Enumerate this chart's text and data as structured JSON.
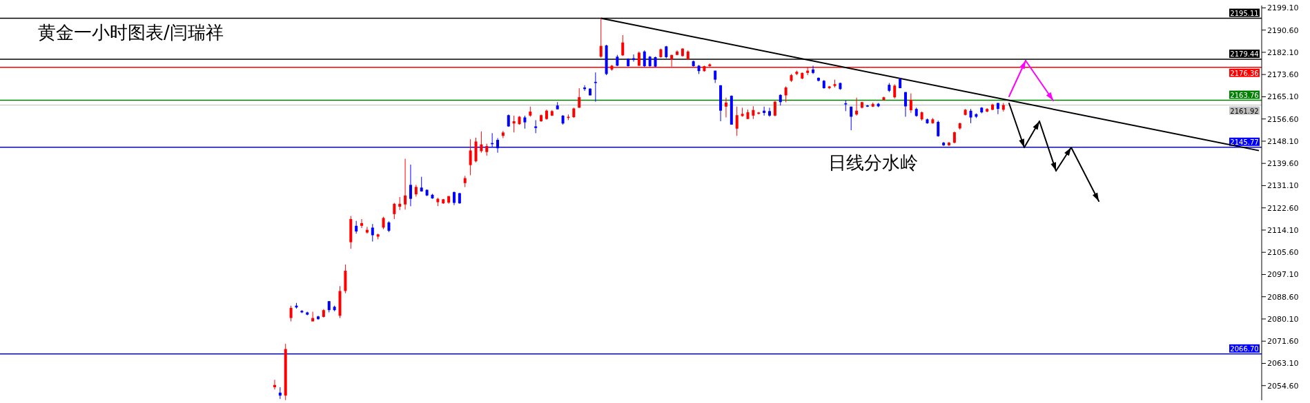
{
  "chart_data": {
    "type": "candlestick",
    "title": "黄金一小时图表/闫瑞祥",
    "annotations": [
      "日线分水岭"
    ],
    "categories": [
      null,
      null,
      null,
      null,
      null,
      null,
      null,
      null,
      null,
      null,
      null,
      null,
      null,
      null,
      null,
      null,
      null,
      null,
      null,
      null,
      null,
      null,
      null,
      null,
      null,
      null,
      null,
      null,
      null,
      null,
      null,
      null,
      null,
      null,
      null,
      null,
      null,
      null,
      null,
      null,
      null,
      null,
      null,
      null,
      null,
      null,
      null,
      null,
      null,
      null,
      null,
      null,
      null,
      null,
      null,
      null,
      null,
      null,
      null,
      null,
      null,
      null,
      null,
      null,
      null,
      null,
      null,
      null,
      null,
      null,
      null,
      null,
      null,
      null,
      null,
      null,
      null,
      null,
      null,
      null,
      null,
      null,
      null,
      null,
      null,
      null,
      null,
      null,
      null,
      null,
      null,
      null,
      null,
      null,
      null,
      null,
      null,
      null,
      null,
      null,
      null,
      null,
      null,
      null,
      null,
      null,
      null,
      null,
      null,
      null,
      null,
      null,
      null,
      null,
      null,
      null,
      null,
      null,
      null,
      null,
      null,
      null,
      null,
      null,
      null,
      null,
      null,
      null,
      null,
      null,
      null,
      null,
      null,
      null,
      null,
      null,
      null,
      null,
      null,
      null,
      null,
      null,
      null,
      null,
      null,
      null,
      null,
      null,
      null,
      null,
      null,
      null,
      null,
      null,
      null,
      null,
      null,
      null,
      null,
      null,
      null,
      null,
      null,
      null,
      null,
      null,
      null,
      null,
      null,
      null,
      null,
      null,
      null,
      null,
      null,
      null,
      null,
      null,
      null,
      null,
      null,
      null,
      null,
      null,
      null,
      null,
      null,
      null,
      null,
      null,
      null,
      null,
      null,
      null,
      null,
      null,
      null,
      null,
      null,
      null,
      null,
      null,
      null,
      null,
      null,
      null,
      null,
      null,
      null,
      null,
      null,
      null,
      null,
      null,
      null,
      null,
      null,
      null,
      null,
      null,
      null,
      null,
      null,
      null,
      null,
      null,
      null,
      null,
      null,
      null,
      null,
      null
    ],
    "ohlc": [
      null,
      null,
      null,
      null,
      null,
      null,
      null,
      null,
      null,
      null,
      null,
      null,
      null,
      null,
      null,
      null,
      null,
      null,
      null,
      null,
      null,
      null,
      null,
      null,
      null,
      null,
      null,
      null,
      null,
      null,
      null,
      null,
      null,
      null,
      null,
      null,
      null,
      null,
      null,
      null,
      null,
      null,
      null,
      null,
      null,
      null,
      null,
      null,
      null,
      null,
      [
        2053.97,
        2056.81,
        2053.11,
        2054.83
      ],
      [
        2051.9,
        2053.97,
        2049.49,
        2050.78
      ],
      [
        2050.78,
        2070.57,
        2049.06,
        2068.59
      ],
      [
        2080.46,
        2085.19,
        2079.17,
        2084.33
      ],
      [
        2085.19,
        2086.22,
        2084.07,
        2084.5
      ],
      [
        2083.21,
        2083.47,
        2082.35,
        2082.61
      ],
      [
        2082.61,
        2082.87,
        2081.49,
        2081.75
      ],
      [
        2079.17,
        2082.87,
        2079.17,
        2080.46
      ],
      [
        2081.06,
        2081.32,
        2079.77,
        2080.03
      ],
      [
        2080.89,
        2083.9,
        2080.63,
        2083.47
      ],
      [
        2086.91,
        2086.91,
        2082.61,
        2083.47
      ],
      [
        2084.76,
        2085.19,
        2083.04,
        2083.47
      ],
      [
        2081.32,
        2092.67,
        2080.46,
        2090.78
      ],
      [
        2090.78,
        2100.93,
        2089.92,
        2098.53
      ],
      [
        2109.45,
        2119.51,
        2106.96,
        2118.31
      ],
      [
        2115.73,
        2117.62,
        2112.72,
        2113.58
      ],
      [
        2115.73,
        2118.31,
        2114.87,
        2116.76
      ],
      [
        2113.15,
        2115.3,
        2112.72,
        2114.18
      ],
      [
        2115.04,
        2116.42,
        2109.71,
        2112.12
      ],
      [
        2111.6,
        2112.72,
        2110.57,
        2112.46
      ],
      [
        2115.04,
        2119.17,
        2114.44,
        2118.74
      ],
      [
        2117.02,
        2117.45,
        2113.32,
        2113.84
      ],
      [
        2120.2,
        2124.5,
        2118.31,
        2124.16
      ],
      [
        2123.04,
        2126.74,
        2121.75,
        2124.16
      ],
      [
        2123.9,
        2141.36,
        2121.92,
        2127.34
      ],
      [
        2131.39,
        2139.13,
        2123.21,
        2126.05
      ],
      [
        2127.77,
        2131.39,
        2126.91,
        2130.61
      ],
      [
        2130.35,
        2134.48,
        2128.8,
        2128.89
      ],
      [
        2129.49,
        2129.66,
        2127.08,
        2127.34
      ],
      [
        2127.6,
        2127.94,
        2126.05,
        2126.22
      ],
      [
        2124.76,
        2126.48,
        2123.3,
        2126.05
      ],
      [
        2124.33,
        2126.0,
        2124.1,
        2125.88
      ],
      [
        2124.59,
        2127.08,
        2124.16,
        2127.08
      ],
      [
        2128.63,
        2128.8,
        2123.64,
        2124.5
      ],
      [
        2128.2,
        2128.37,
        2124.16,
        2124.33
      ],
      [
        2132.07,
        2134.83,
        2130.53,
        2133.97
      ],
      [
        2138.95,
        2148.85,
        2135.08,
        2144.55
      ],
      [
        2140.42,
        2149.45,
        2139.99,
        2147.99
      ],
      [
        2144.29,
        2151.86,
        2143.69,
        2146.87
      ],
      [
        2143.94,
        2147.13,
        2142.57,
        2146.27
      ],
      [
        2147.38,
        2151.17,
        2145.84,
        2146.95
      ],
      [
        2148.59,
        2149.28,
        2143.69,
        2145.41
      ],
      [
        2150.14,
        2152.03,
        2149.28,
        2151.43
      ],
      [
        2158.05,
        2158.31,
        2153.58,
        2153.75
      ],
      [
        2154.87,
        2157.88,
        2151.43,
        2155.73
      ],
      [
        2154.61,
        2157.71,
        2154.44,
        2157.45
      ],
      [
        2157.19,
        2157.88,
        2152.89,
        2155.3
      ],
      [
        2157.88,
        2161.32,
        2157.45,
        2159.43
      ],
      [
        2153.75,
        2156.16,
        2151.17,
        2153.15
      ],
      [
        2155.73,
        2158.31,
        2155.47,
        2158.05
      ],
      [
        2156.59,
        2160.2,
        2156.3,
        2159.77
      ],
      [
        2157.88,
        2160.03,
        2157.71,
        2159.6
      ],
      [
        2161.75,
        2163.04,
        2160.29,
        2160.29
      ],
      [
        2157.88,
        2158.05,
        2154.44,
        2154.87
      ],
      [
        2157.02,
        2158.31,
        2156.16,
        2157.45
      ],
      [
        2157.28,
        2160.89,
        2157.02,
        2160.63
      ],
      [
        2160.89,
        2168.37,
        2160.89,
        2164.93
      ],
      [
        2168.63,
        2169.49,
        2167.34,
        2168.03
      ],
      [
        2168.2,
        2168.37,
        2165.62,
        2165.62
      ],
      [
        2170.78,
        2174.4,
        2163.21,
        2170.35
      ],
      [
        2180.42,
        2195.11,
        2180.07,
        2184.55
      ],
      [
        2184.72,
        2184.98,
        2173.36,
        2173.79
      ],
      [
        2175.51,
        2177.23,
        2175.08,
        2176.98
      ],
      [
        2180.42,
        2181.11,
        2176.8,
        2176.98
      ],
      [
        2180.93,
        2188.68,
        2180.68,
        2185.84
      ],
      [
        2179.56,
        2179.82,
        2176.63,
        2176.8
      ],
      [
        2179.82,
        2181.28,
        2178.53,
        2179.21
      ],
      [
        2176.98,
        2182.4,
        2176.8,
        2181.97
      ],
      [
        2182.4,
        2182.83,
        2176.37,
        2176.8
      ],
      [
        2180.42,
        2180.68,
        2176.63,
        2176.8
      ],
      [
        2180.25,
        2180.42,
        2176.37,
        2176.63
      ],
      [
        2180.25,
        2183.51,
        2180.07,
        2183.26
      ],
      [
        2184.37,
        2184.55,
        2179.82,
        2180.25
      ],
      [
        2179.39,
        2181.11,
        2176.63,
        2181.11
      ],
      [
        2181.11,
        2182.83,
        2180.93,
        2182.4
      ],
      [
        2180.68,
        2183.69,
        2180.42,
        2183.51
      ],
      [
        2179.39,
        2182.83,
        2179.21,
        2182.4
      ],
      [
        2178.7,
        2178.96,
        2176.63,
        2176.8
      ],
      [
        2176.98,
        2177.23,
        2173.79,
        2174.91
      ],
      [
        2174.91,
        2176.98,
        2174.65,
        2176.8
      ],
      [
        2176.8,
        2177.84,
        2176.63,
        2177.49
      ],
      [
        2175.08,
        2175.08,
        2170.35,
        2171.64
      ],
      [
        2169.49,
        2169.49,
        2155.73,
        2159.77
      ],
      [
        2161.32,
        2164.76,
        2157.19,
        2162.87
      ],
      [
        2165.45,
        2165.62,
        2154.44,
        2154.44
      ],
      [
        2152.89,
        2161.32,
        2150.14,
        2158.05
      ],
      [
        2157.71,
        2160.89,
        2157.45,
        2158.57
      ],
      [
        2156.59,
        2160.2,
        2156.59,
        2159.17
      ],
      [
        2157.88,
        2161.49,
        2156.59,
        2160.03
      ],
      [
        2158.57,
        2159.26,
        2158.31,
        2159.08
      ],
      [
        2159.77,
        2161.32,
        2157.88,
        2158.91
      ],
      [
        2159.6,
        2160.89,
        2157.45,
        2157.88
      ],
      [
        2157.88,
        2163.5,
        2157.6,
        2163.21
      ],
      [
        2165.79,
        2166.05,
        2161.75,
        2163.04
      ],
      [
        2165.62,
        2169.06,
        2163.04,
        2168.63
      ],
      [
        2171.21,
        2173.79,
        2170.78,
        2173.36
      ],
      [
        2173.79,
        2175.08,
        2173.36,
        2174.65
      ],
      [
        2172.07,
        2174.4,
        2171.81,
        2174.22
      ],
      [
        2174.22,
        2176.37,
        2173.36,
        2175.08
      ],
      [
        2175.51,
        2176.98,
        2173.79,
        2174.22
      ],
      [
        2172.33,
        2172.5,
        2170.95,
        2171.21
      ],
      [
        2171.21,
        2171.47,
        2168.2,
        2168.37
      ],
      [
        2168.37,
        2169.23,
        2168.03,
        2169.06
      ],
      [
        2169.23,
        2171.64,
        2168.63,
        2169.92
      ],
      [
        2170.35,
        2170.52,
        2167.77,
        2168.03
      ],
      [
        2162.61,
        2163.73,
        2159.6,
        2162.18
      ],
      [
        2161.32,
        2161.32,
        2152.29,
        2157.45
      ],
      [
        2158.31,
        2164.76,
        2157.88,
        2159.77
      ],
      [
        2160.89,
        2163.21,
        2160.63,
        2163.04
      ],
      [
        2161.75,
        2162.01,
        2161.15,
        2161.32
      ],
      [
        2161.32,
        2162.87,
        2161.15,
        2162.35
      ],
      [
        2162.42,
        2162.71,
        2161.12,
        2161.42
      ],
      [
        2163.91,
        2165.1,
        2163.71,
        2164.9
      ],
      [
        2169.66,
        2170.36,
        2166.88,
        2167.38
      ],
      [
        2164.9,
        2169.86,
        2164.4,
        2169.36
      ],
      [
        2171.85,
        2172.34,
        2168.37,
        2168.37
      ],
      [
        2166.88,
        2166.88,
        2157.45,
        2161.42
      ],
      [
        2159.94,
        2166.39,
        2158.94,
        2163.91
      ],
      [
        2160.43,
        2160.93,
        2157.45,
        2157.75
      ],
      [
        2156.46,
        2159.44,
        2155.96,
        2159.14
      ],
      [
        2156.46,
        2156.76,
        2154.77,
        2154.97
      ],
      [
        2154.97,
        2156.96,
        2154.77,
        2156.46
      ],
      [
        2155.47,
        2155.96,
        2149.81,
        2150.01
      ],
      [
        2147.53,
        2147.83,
        2146.24,
        2146.53
      ],
      [
        2146.53,
        2147.83,
        2146.24,
        2147.53
      ],
      [
        2147.53,
        2151.8,
        2147.23,
        2151.5
      ],
      [
        2152.99,
        2155.17,
        2152.49,
        2154.97
      ],
      [
        2158.15,
        2160.43,
        2157.95,
        2160.13
      ],
      [
        2159.74,
        2160.43,
        2154.97,
        2157.16
      ],
      [
        2158.44,
        2158.74,
        2156.96,
        2157.45
      ],
      [
        2160.93,
        2161.12,
        2158.74,
        2159.14
      ],
      [
        2159.44,
        2160.73,
        2159.14,
        2160.43
      ],
      [
        2160.13,
        2162.42,
        2159.94,
        2162.12
      ],
      [
        2162.71,
        2162.71,
        2158.44,
        2160.43
      ],
      [
        2160.13,
        2162.71,
        2159.44,
        2161.92
      ],
      null,
      null,
      null,
      null,
      null,
      null,
      null,
      null,
      null,
      null,
      null,
      null,
      null,
      null,
      null,
      null,
      null,
      null,
      null,
      null,
      null,
      null,
      null,
      null,
      null,
      null,
      null,
      null,
      null,
      null,
      null,
      null,
      null,
      null,
      null,
      null,
      null,
      null,
      null,
      null,
      null,
      null,
      null,
      null,
      null,
      null,
      null
    ],
    "colors": [
      null,
      null,
      null,
      null,
      null,
      null,
      null,
      null,
      null,
      null,
      null,
      null,
      null,
      null,
      null,
      null,
      null,
      null,
      null,
      null,
      null,
      null,
      null,
      null,
      null,
      null,
      null,
      null,
      null,
      null,
      null,
      null,
      null,
      null,
      null,
      null,
      null,
      null,
      null,
      null,
      null,
      null,
      null,
      null,
      null,
      null,
      null,
      null,
      null,
      null,
      "#ff0000",
      "#0000ff",
      "#ff0000",
      "#ff0000",
      "#0000ff",
      "#0000ff",
      "#0000ff",
      "#ff0000",
      "#0000ff",
      "#ff0000",
      "#0000ff",
      "#0000ff",
      "#ff0000",
      "#ff0000",
      "#ff0000",
      "#0000ff",
      "#ff0000",
      "#ff0000",
      "#0000ff",
      "#ff0000",
      "#ff0000",
      "#0000ff",
      "#ff0000",
      "#ff0000",
      "#ff0000",
      "#0000ff",
      "#ff0000",
      "#0000ff",
      "#0000ff",
      "#0000ff",
      "#ff0000",
      "#ff0000",
      "#ff0000",
      "#0000ff",
      "#0000ff",
      "#ff0000",
      "#ff0000",
      "#ff0000",
      "#ff0000",
      "#ff0000",
      "#0000ff",
      "#0000ff",
      "#ff0000",
      "#0000ff",
      "#ff0000",
      "#ff0000",
      "#0000ff",
      "#ff0000",
      "#0000ff",
      "#ff0000",
      "#ff0000",
      "#ff0000",
      "#0000ff",
      "#0000ff",
      "#ff0000",
      "#ff0000",
      "#ff0000",
      "#0000ff",
      "#0000ff",
      "#0000ff",
      "#ff0000",
      "#0000ff",
      "#ff0000",
      "#0000ff",
      "#ff0000",
      "#0000ff",
      "#0000ff",
      "#ff0000",
      "#0000ff",
      "#0000ff",
      "#0000ff",
      "#ff0000",
      "#0000ff",
      "#ff0000",
      "#ff0000",
      "#ff0000",
      "#ff0000",
      "#0000ff",
      "#0000ff",
      "#ff0000",
      "#ff0000",
      "#0000ff",
      "#0000ff",
      "#ff0000",
      "#0000ff",
      "#ff0000",
      "#ff0000",
      "#ff0000",
      "#ff0000",
      "#ff0000",
      "#0000ff",
      "#0000ff",
      "#ff0000",
      "#0000ff",
      "#ff0000",
      "#ff0000",
      "#ff0000",
      "#ff0000",
      "#ff0000",
      "#0000ff",
      "#0000ff",
      "#0000ff",
      "#ff0000",
      "#ff0000",
      "#0000ff",
      "#0000ff",
      "#0000ff",
      "#ff0000",
      "#ff0000",
      "#0000ff",
      "#ff0000",
      "#0000ff",
      "#ff0000",
      "#0000ff",
      "#ff0000",
      "#0000ff",
      "#0000ff",
      "#ff0000",
      "#0000ff",
      "#ff0000",
      "#0000ff",
      "#ff0000",
      "#0000ff",
      "#0000ff",
      "#ff0000",
      "#ff0000",
      "#ff0000",
      "#ff0000",
      "#0000ff",
      "#0000ff",
      "#0000ff",
      "#ff0000",
      "#ff0000",
      "#0000ff",
      "#ff0000",
      null,
      null,
      null,
      null,
      null,
      null,
      null,
      null,
      null,
      null,
      null,
      null,
      null,
      null,
      null,
      null,
      null,
      null,
      null,
      null,
      null,
      null,
      null,
      null,
      null,
      null,
      null,
      null,
      null,
      null,
      null,
      null,
      null,
      null,
      null,
      null,
      null,
      null,
      null,
      null,
      null,
      null,
      null,
      null,
      null,
      null,
      null
    ],
    "series": [
      {
        "type": "line",
        "color": "#000000",
        "values": [
          null,
          null,
          null,
          null,
          null,
          null,
          null,
          null,
          null,
          null,
          null,
          null,
          null,
          null,
          null,
          null,
          null,
          null,
          null,
          null,
          null,
          null,
          null,
          null,
          null,
          null,
          null,
          null,
          null,
          null,
          null,
          null,
          null,
          null,
          null,
          null,
          null,
          null,
          null,
          null,
          null,
          null,
          null,
          null,
          null,
          null,
          null,
          null,
          null,
          null,
          null,
          null,
          null,
          null,
          null,
          null,
          null,
          null,
          null,
          null,
          null,
          null,
          null,
          null,
          null,
          null,
          null,
          null,
          null,
          null,
          null,
          null,
          null,
          null,
          null,
          null,
          null,
          null,
          null,
          null,
          null,
          null,
          null,
          null,
          null,
          null,
          null,
          null,
          null,
          null,
          null,
          null,
          null,
          null,
          null,
          null,
          null,
          null,
          null,
          null,
          null,
          null,
          null,
          null,
          null,
          null,
          null,
          null,
          null,
          null,
          2195.11,
          null,
          null,
          null,
          null,
          null,
          null,
          null,
          null,
          null,
          null,
          null,
          null,
          null,
          null,
          null,
          null,
          null,
          null,
          null,
          null,
          null,
          null,
          null,
          null,
          null,
          null,
          null,
          null,
          null,
          null,
          null,
          null,
          null,
          null,
          null,
          null,
          null,
          null,
          null,
          null,
          null,
          null,
          null,
          null,
          null,
          null,
          null,
          null,
          null,
          null,
          null,
          null,
          null,
          null,
          null,
          null,
          null,
          null,
          null,
          null,
          null,
          null,
          null,
          null,
          null,
          null,
          null,
          null,
          null,
          null,
          null,
          null,
          null,
          null,
          null,
          null,
          null,
          null,
          null,
          null,
          null,
          null,
          null,
          null,
          null,
          null,
          null,
          null,
          null,
          null,
          null,
          null,
          null,
          null,
          null,
          null,
          null,
          null,
          null,
          null,
          null,
          null,
          null,
          null,
          null,
          null,
          null,
          null,
          null,
          null,
          null,
          null,
          null,
          null,
          null,
          null,
          null,
          null,
          null,
          null,
          2144.5
        ]
      }
    ],
    "ylim": [
      2049,
      2200
    ],
    "yticks": [
      {
        "value": 2199.1,
        "label": "2199.10"
      },
      {
        "value": 2190.6,
        "label": "2190.60"
      },
      {
        "value": 2182.1,
        "label": "2182.10"
      },
      {
        "value": 2173.6,
        "label": "2173.60"
      },
      {
        "value": 2165.1,
        "label": "2165.10"
      },
      {
        "value": 2156.6,
        "label": "2156.60"
      },
      {
        "value": 2148.1,
        "label": "2148.10"
      },
      {
        "value": 2139.6,
        "label": "2139.60"
      },
      {
        "value": 2131.1,
        "label": "2131.10"
      },
      {
        "value": 2122.6,
        "label": "2122.60"
      },
      {
        "value": 2114.1,
        "label": "2114.10"
      },
      {
        "value": 2105.6,
        "label": "2105.60"
      },
      {
        "value": 2097.1,
        "label": "2097.10"
      },
      {
        "value": 2088.6,
        "label": "2088.60"
      },
      {
        "value": 2080.1,
        "label": "2080.10"
      },
      {
        "value": 2071.6,
        "label": "2071.60"
      },
      {
        "value": 2063.1,
        "label": "2063.10"
      },
      {
        "value": 2054.6,
        "label": "2054.60"
      }
    ],
    "ref_lines": [
      {
        "axis": "y",
        "value": 2195.11,
        "label": "2195.11",
        "color": "#000000"
      },
      {
        "axis": "y",
        "value": 2179.44,
        "label": "2179.44",
        "color": "#000000"
      },
      {
        "axis": "y",
        "value": 2176.36,
        "label": "2176.36",
        "color": "#ff0000"
      },
      {
        "axis": "y",
        "value": 2163.76,
        "label": "2163.76",
        "color": "#008000"
      },
      {
        "axis": "y",
        "value": 2161.92,
        "label": "2161.92",
        "color": "#c0c0c0"
      },
      {
        "axis": "y",
        "value": 2145.77,
        "label": "2145.77",
        "color": "#0000ff"
      },
      {
        "axis": "y",
        "value": 2066.7,
        "label": "2066.70",
        "color": "#0000ff"
      }
    ]
  }
}
